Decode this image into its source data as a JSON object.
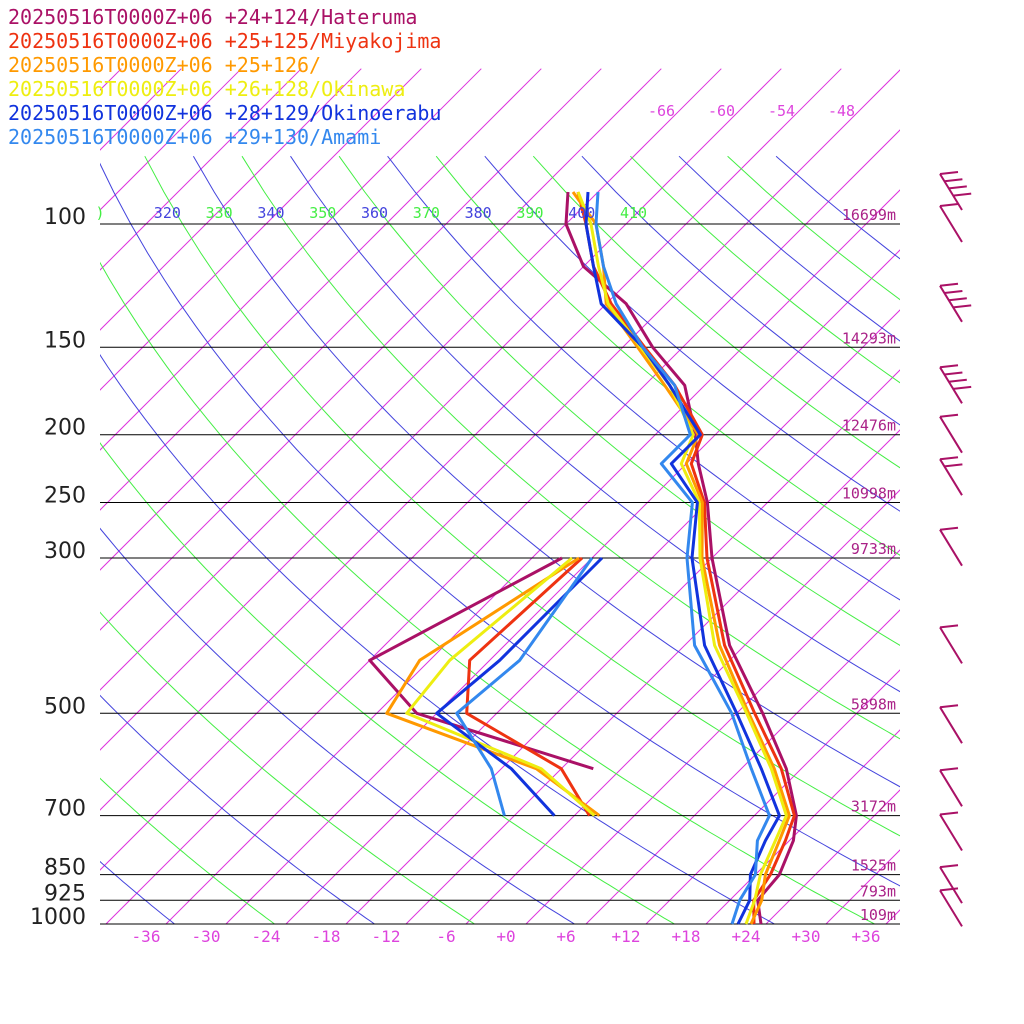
{
  "chart_data": {
    "type": "line",
    "chart_kind": "skew-T log-p sounding",
    "x_unit": "degC",
    "y_unit": "hPa",
    "y_scale": "log",
    "ylim": [
      1000,
      100
    ],
    "xlim": [
      -40,
      40
    ],
    "legend_placement": "top-left",
    "temperature_ticks": [
      "-36",
      "-30",
      "-24",
      "-18",
      "-12",
      "-6",
      "+0",
      "+6",
      "+12",
      "+18",
      "+24",
      "+30",
      "+36"
    ],
    "pressure_levels": [
      {
        "p": 100,
        "label": "100",
        "height": "16699m"
      },
      {
        "p": 150,
        "label": "150",
        "height": "14293m"
      },
      {
        "p": 200,
        "label": "200",
        "height": "12476m"
      },
      {
        "p": 250,
        "label": "250",
        "height": "10998m"
      },
      {
        "p": 300,
        "label": "300",
        "height": "9733m"
      },
      {
        "p": 500,
        "label": "500",
        "height": "5898m"
      },
      {
        "p": 700,
        "label": "700",
        "height": "3172m"
      },
      {
        "p": 850,
        "label": "850",
        "height": "1525m"
      },
      {
        "p": 925,
        "label": "925",
        "height": "793m"
      },
      {
        "p": 1000,
        "label": "1000",
        "height": "109m"
      }
    ],
    "theta_labels": [
      {
        "text": ")",
        "color": "#44ee44"
      },
      {
        "text": "320",
        "color": "#4444dd"
      },
      {
        "text": "330",
        "color": "#44ee44"
      },
      {
        "text": "340",
        "color": "#4444dd"
      },
      {
        "text": "350",
        "color": "#44ee44"
      },
      {
        "text": "360",
        "color": "#4444dd"
      },
      {
        "text": "370",
        "color": "#44ee44"
      },
      {
        "text": "380",
        "color": "#4444dd"
      },
      {
        "text": "390",
        "color": "#44ee44"
      },
      {
        "text": "400",
        "color": "#4444dd"
      },
      {
        "text": "410",
        "color": "#44ee44"
      }
    ],
    "isotherm_labels": [
      "-66",
      "-60",
      "-54",
      "-48"
    ],
    "series": [
      {
        "name": "20250516T0000Z+06 +24+124/Hateruma",
        "color": "#aa1166",
        "profile": [
          [
            1000,
            25.5
          ],
          [
            925,
            22.8
          ],
          [
            850,
            22.4
          ],
          [
            760,
            20.4
          ],
          [
            700,
            18.2
          ],
          [
            600,
            12.5
          ],
          [
            500,
            4.6
          ],
          [
            400,
            -5.5
          ],
          [
            300,
            -16.0
          ],
          [
            250,
            -22.0
          ],
          [
            220,
            -26.8
          ],
          [
            200,
            -30.0
          ],
          [
            170,
            -36.0
          ],
          [
            150,
            -43.0
          ],
          [
            130,
            -50.0
          ],
          [
            115,
            -58.0
          ],
          [
            100,
            -64.0
          ],
          [
            90,
            -67.0
          ]
        ],
        "dewpoint": [
          [
            600,
            -6.8
          ],
          [
            500,
            -30.0
          ],
          [
            420,
            -40.0
          ],
          [
            300,
            -31.0
          ]
        ]
      },
      {
        "name": "20250516T0000Z+06 +25+125/Miyakojima",
        "color": "#ee3311",
        "profile": [
          [
            1000,
            24.8
          ],
          [
            925,
            22.4
          ],
          [
            850,
            21.5
          ],
          [
            760,
            19.6
          ],
          [
            700,
            18.0
          ],
          [
            600,
            12.0
          ],
          [
            500,
            3.8
          ],
          [
            400,
            -6.0
          ],
          [
            300,
            -16.5
          ],
          [
            250,
            -22.3
          ],
          [
            220,
            -27.5
          ],
          [
            200,
            -29.3
          ],
          [
            170,
            -37.0
          ],
          [
            150,
            -43.8
          ],
          [
            130,
            -51.5
          ],
          [
            115,
            -57.0
          ],
          [
            100,
            -62.0
          ],
          [
            90,
            -66.0
          ]
        ],
        "dewpoint": [
          [
            700,
            -2.5
          ],
          [
            600,
            -10.0
          ],
          [
            500,
            -25.0
          ],
          [
            420,
            -30.0
          ],
          [
            300,
            -29.0
          ]
        ]
      },
      {
        "name": "20250516T0000Z+06 +25+126/",
        "color": "#ff9900",
        "profile": [
          [
            1000,
            24.5
          ],
          [
            925,
            23.2
          ],
          [
            850,
            21.0
          ],
          [
            760,
            19.0
          ],
          [
            700,
            17.5
          ],
          [
            600,
            11.3
          ],
          [
            500,
            3.2
          ],
          [
            400,
            -6.5
          ],
          [
            300,
            -17.0
          ],
          [
            250,
            -22.5
          ],
          [
            220,
            -28.0
          ],
          [
            200,
            -29.7
          ],
          [
            170,
            -38.0
          ],
          [
            150,
            -44.5
          ],
          [
            130,
            -52.0
          ],
          [
            115,
            -56.0
          ],
          [
            100,
            -61.0
          ],
          [
            90,
            -66.5
          ]
        ],
        "dewpoint": [
          [
            700,
            -1.5
          ],
          [
            600,
            -12.5
          ],
          [
            500,
            -33.0
          ],
          [
            420,
            -35.0
          ],
          [
            300,
            -29.3
          ]
        ]
      },
      {
        "name": "20250516T0000Z+06 +26+128/Okinawa",
        "color": "#eeee11",
        "profile": [
          [
            1000,
            24.0
          ],
          [
            925,
            22.5
          ],
          [
            850,
            20.5
          ],
          [
            760,
            18.6
          ],
          [
            700,
            17.2
          ],
          [
            600,
            11.0
          ],
          [
            500,
            3.0
          ],
          [
            400,
            -7.0
          ],
          [
            300,
            -17.2
          ],
          [
            250,
            -22.8
          ],
          [
            220,
            -28.5
          ],
          [
            200,
            -30.2
          ],
          [
            170,
            -37.5
          ],
          [
            150,
            -44.2
          ],
          [
            130,
            -51.8
          ],
          [
            115,
            -56.5
          ],
          [
            100,
            -61.5
          ],
          [
            90,
            -66.0
          ]
        ],
        "dewpoint": [
          [
            700,
            -2.0
          ],
          [
            600,
            -12.0
          ],
          [
            500,
            -31.0
          ],
          [
            420,
            -32.0
          ],
          [
            300,
            -30.0
          ]
        ]
      },
      {
        "name": "20250516T0000Z+06 +28+129/Okinoerabu",
        "color": "#1133dd",
        "profile": [
          [
            1000,
            23.2
          ],
          [
            925,
            22.0
          ],
          [
            850,
            19.5
          ],
          [
            760,
            17.6
          ],
          [
            700,
            16.5
          ],
          [
            600,
            10.0
          ],
          [
            500,
            2.0
          ],
          [
            400,
            -8.0
          ],
          [
            300,
            -18.0
          ],
          [
            250,
            -23.0
          ],
          [
            220,
            -29.5
          ],
          [
            200,
            -29.5
          ],
          [
            170,
            -37.5
          ],
          [
            150,
            -44.0
          ],
          [
            130,
            -52.5
          ],
          [
            115,
            -57.0
          ],
          [
            100,
            -62.0
          ],
          [
            90,
            -65.0
          ]
        ],
        "dewpoint": [
          [
            700,
            -6.0
          ],
          [
            600,
            -15.0
          ],
          [
            500,
            -28.0
          ],
          [
            420,
            -27.0
          ],
          [
            300,
            -27.0
          ]
        ]
      },
      {
        "name": "20250516T0000Z+06 +29+130/Amami",
        "color": "#3388ee",
        "profile": [
          [
            1000,
            22.6
          ],
          [
            925,
            21.0
          ],
          [
            850,
            20.0
          ],
          [
            760,
            16.8
          ],
          [
            700,
            15.5
          ],
          [
            600,
            9.0
          ],
          [
            500,
            1.5
          ],
          [
            400,
            -9.0
          ],
          [
            300,
            -18.5
          ],
          [
            250,
            -23.5
          ],
          [
            220,
            -30.5
          ],
          [
            200,
            -30.5
          ],
          [
            170,
            -37.0
          ],
          [
            150,
            -44.0
          ],
          [
            130,
            -51.0
          ],
          [
            115,
            -56.0
          ],
          [
            100,
            -61.0
          ],
          [
            90,
            -64.0
          ]
        ],
        "dewpoint": [
          [
            700,
            -11.0
          ],
          [
            600,
            -17.0
          ],
          [
            500,
            -26.0
          ],
          [
            420,
            -25.0
          ],
          [
            300,
            -28.0
          ]
        ]
      }
    ],
    "wind_barbs": [
      {
        "p": 90,
        "speed_kt": 50
      },
      {
        "p": 100,
        "speed_kt": 5
      },
      {
        "p": 130,
        "speed_kt": 50
      },
      {
        "p": 170,
        "speed_kt": 50
      },
      {
        "p": 200,
        "speed_kt": 10
      },
      {
        "p": 230,
        "speed_kt": 15
      },
      {
        "p": 290,
        "speed_kt": 10
      },
      {
        "p": 400,
        "speed_kt": 10
      },
      {
        "p": 520,
        "speed_kt": 5
      },
      {
        "p": 640,
        "speed_kt": 10
      },
      {
        "p": 740,
        "speed_kt": 10
      },
      {
        "p": 880,
        "speed_kt": 5
      },
      {
        "p": 950,
        "speed_kt": 5
      }
    ]
  }
}
